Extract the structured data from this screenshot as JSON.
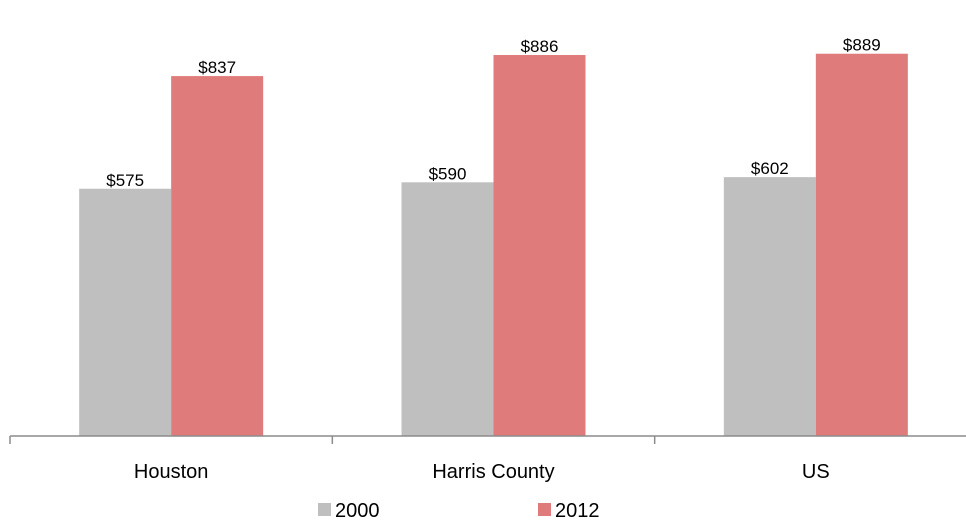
{
  "chart_data": {
    "type": "bar",
    "categories": [
      "Houston",
      "Harris County",
      "US"
    ],
    "series": [
      {
        "name": "2000",
        "values": [
          575,
          590,
          602
        ],
        "labels": [
          "$575",
          "$590",
          "$602"
        ],
        "color": "#bfbfbf"
      },
      {
        "name": "2012",
        "values": [
          837,
          886,
          889
        ],
        "labels": [
          "$837",
          "$886",
          "$889"
        ],
        "color": "#e07b7b"
      }
    ],
    "title": "",
    "xlabel": "",
    "ylabel": "",
    "ylim": [
      0,
      1000
    ],
    "grid": false,
    "legend_position": "bottom"
  },
  "colors": {
    "axis": "#8c8c8c"
  }
}
